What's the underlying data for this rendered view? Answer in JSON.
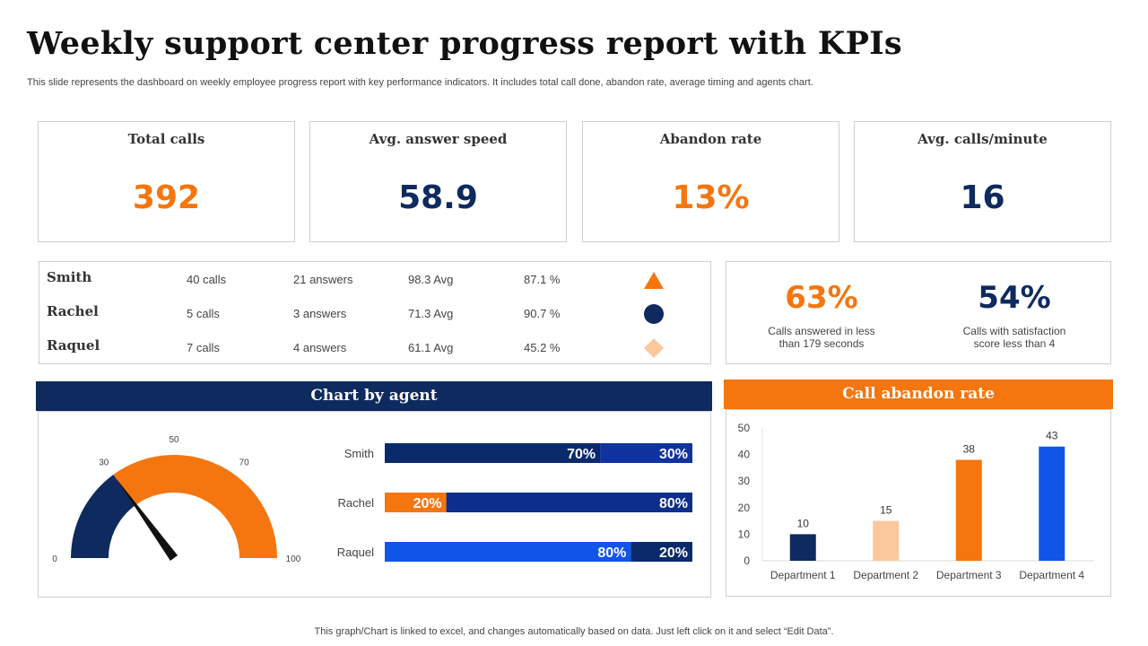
{
  "title": "Weekly support center progress report with KPIs",
  "subtitle": "This slide represents the dashboard on weekly employee progress report with key performance indicators. It includes total call done, abandon rate, average timing and agents chart.",
  "colors": {
    "orange": "#F5760F",
    "navy": "#0E2A5E",
    "blue": "#1155E8",
    "darkblue": "#0A2A6B",
    "peach": "#FBC89E"
  },
  "kpis": [
    {
      "label": "Total calls",
      "value": "392",
      "color": "#F5760F"
    },
    {
      "label": "Avg. answer speed",
      "value": "58.9",
      "color": "#0E2A5E"
    },
    {
      "label": "Abandon rate",
      "value": "13%",
      "color": "#F5760F"
    },
    {
      "label": "Avg. calls/minute",
      "value": "16",
      "color": "#0E2A5E"
    }
  ],
  "agents": [
    {
      "name": "Smith",
      "calls": "40 calls",
      "answers": "21 answers",
      "avg": "98.3 Avg",
      "pct": "87.1 %",
      "icon": "triangle-icon"
    },
    {
      "name": "Rachel",
      "calls": "5 calls",
      "answers": "3 answers",
      "avg": "71.3 Avg",
      "pct": "90.7 %",
      "icon": "circle-icon"
    },
    {
      "name": "Raquel",
      "calls": "7 calls",
      "answers": "4 answers",
      "avg": "61.1 Avg",
      "pct": "45.2 %",
      "icon": "diamond-icon"
    }
  ],
  "percent_stats": [
    {
      "value": "63%",
      "line1": "Calls answered in less",
      "line2": "than 179 seconds",
      "color": "#F5760F"
    },
    {
      "value": "54%",
      "line1": "Calls with satisfaction",
      "line2": "score less than 4",
      "color": "#0E2A5E"
    }
  ],
  "panels": {
    "agent_chart_title": "Chart by agent",
    "abandon_title": "Call abandon rate"
  },
  "footer": "This graph/Chart is linked to excel, and changes automatically based on data. Just left click on it and select “Edit Data”.",
  "chart_data": [
    {
      "type": "gauge",
      "title": "Chart by agent",
      "min": 0,
      "max": 100,
      "tick_labels": [
        "0",
        "30",
        "50",
        "70",
        "100"
      ],
      "ticks": [
        0,
        30,
        50,
        70,
        100
      ],
      "bands": [
        {
          "from": 0,
          "to": 30,
          "color": "#0E2A5E"
        },
        {
          "from": 30,
          "to": 100,
          "color": "#F5760F"
        }
      ],
      "needle": 30
    },
    {
      "type": "bar",
      "orientation": "horizontal",
      "stacked": true,
      "categories": [
        "Smith",
        "Rachel",
        "Raquel"
      ],
      "segments": [
        [
          {
            "value": 70,
            "label": "70%",
            "color": "#0A2A6B"
          },
          {
            "value": 30,
            "label": "30%",
            "color": "#1033A0"
          }
        ],
        [
          {
            "value": 20,
            "label": "20%",
            "color": "#F5760F"
          },
          {
            "value": 80,
            "label": "80%",
            "color": "#0D2E8A"
          }
        ],
        [
          {
            "value": 80,
            "label": "80%",
            "color": "#1155E8"
          },
          {
            "value": 20,
            "label": "20%",
            "color": "#0A2A6B"
          }
        ]
      ],
      "xlim": [
        0,
        100
      ]
    },
    {
      "type": "bar",
      "title": "Call abandon rate",
      "categories": [
        "Department 1",
        "Department 2",
        "Department 3",
        "Department 4"
      ],
      "values": [
        10,
        15,
        38,
        43
      ],
      "colors": [
        "#0E2A5E",
        "#FBC89E",
        "#F5760F",
        "#1155E8"
      ],
      "ylim": [
        0,
        50
      ],
      "yticks": [
        0,
        10,
        20,
        30,
        40,
        50
      ],
      "grid": false
    }
  ]
}
